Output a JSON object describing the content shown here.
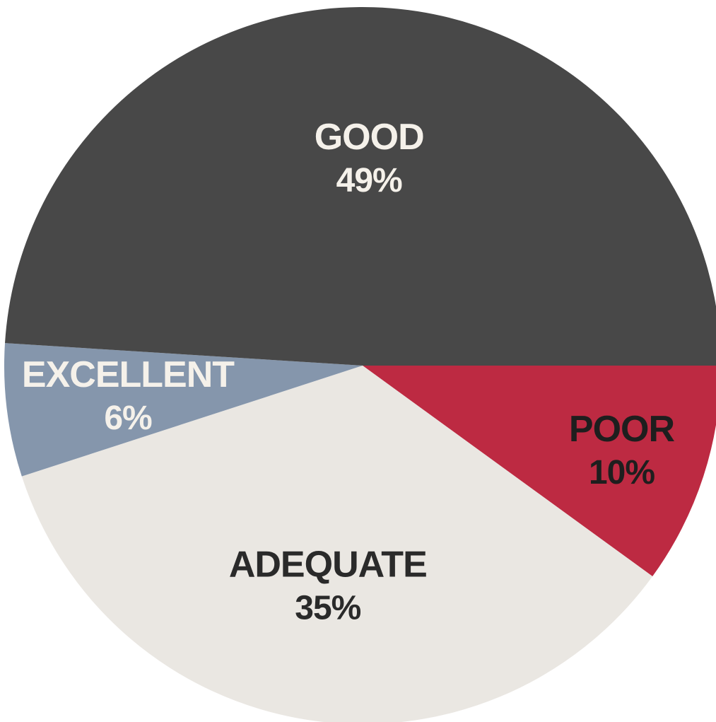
{
  "chart_data": {
    "type": "pie",
    "title": "",
    "slices": [
      {
        "label": "Poor",
        "display_label": "POOR",
        "value": 10,
        "value_label": "10%",
        "color": "#BD2A42",
        "text_color": "#1E1E1E"
      },
      {
        "label": "Adequate",
        "display_label": "ADEQUATE",
        "value": 35,
        "value_label": "35%",
        "color": "#EAE7E2",
        "text_color": "#2A2A2A"
      },
      {
        "label": "Excellent",
        "display_label": "EXCELLENT",
        "value": 6,
        "value_label": "6%",
        "color": "#8596AC",
        "text_color": "#F5F1EA"
      },
      {
        "label": "Good",
        "display_label": "GOOD",
        "value": 49,
        "value_label": "49%",
        "color": "#484848",
        "text_color": "#F5F1EA"
      }
    ],
    "start_angle_deg": 0,
    "direction": "clockwise",
    "legend": "none",
    "labels_inside": true
  }
}
